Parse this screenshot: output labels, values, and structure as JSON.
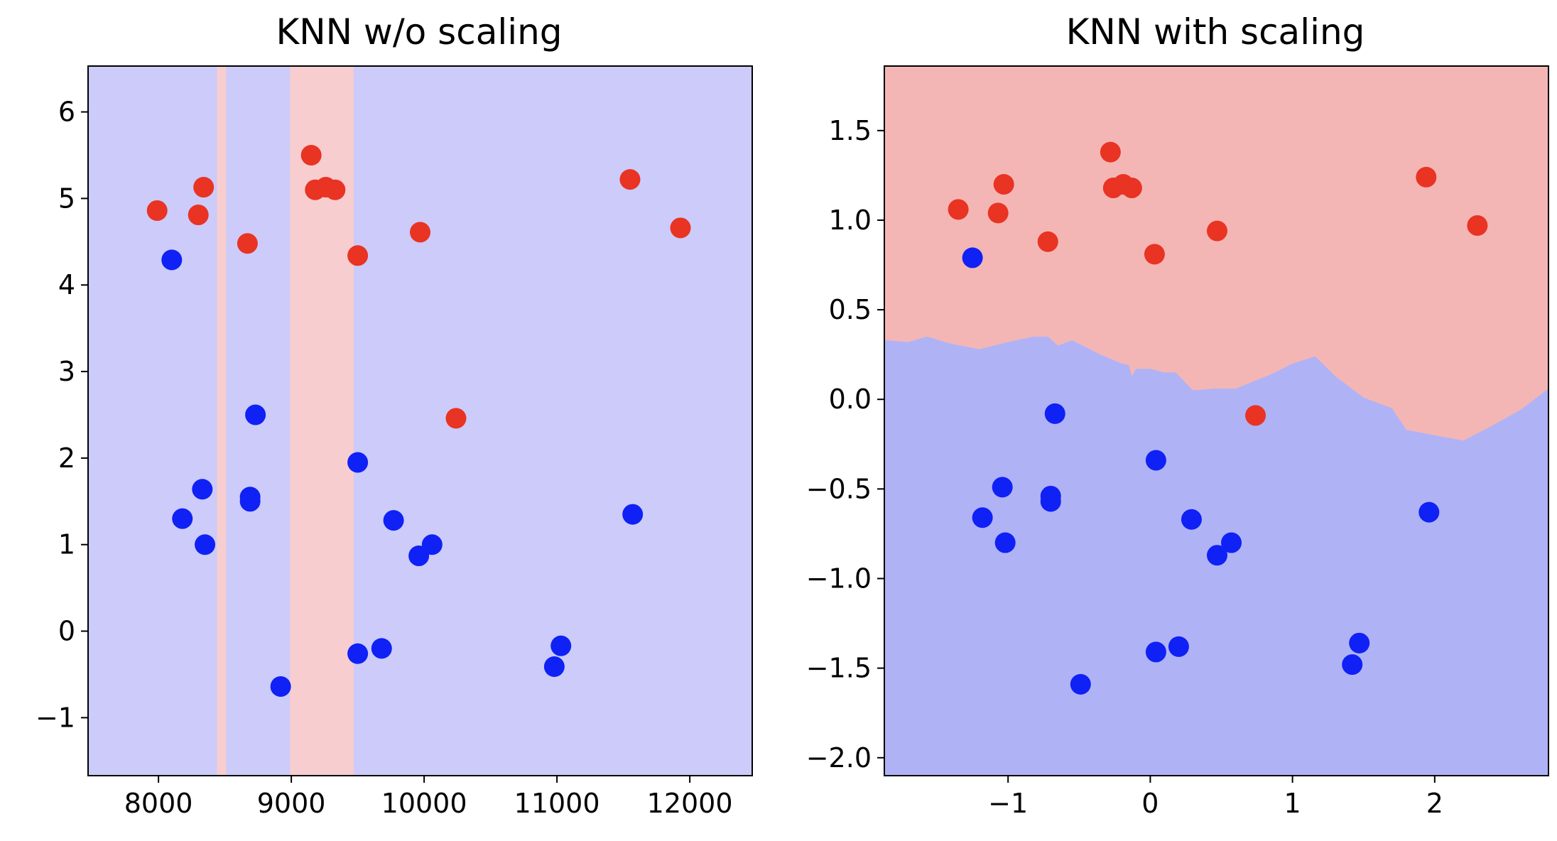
{
  "chart_data": [
    {
      "type": "scatter",
      "title": "KNN w/o scaling",
      "xlim": [
        7470,
        12470
      ],
      "ylim": [
        -1.67,
        6.53
      ],
      "xticks": [
        8000,
        9000,
        10000,
        11000,
        12000
      ],
      "yticks": [
        -1,
        0,
        1,
        2,
        3,
        4,
        5,
        6
      ],
      "xtick_labels": [
        "8000",
        "9000",
        "10000",
        "11000",
        "12000"
      ],
      "ytick_labels": [
        "−1",
        "0",
        "1",
        "2",
        "3",
        "4",
        "5",
        "6"
      ],
      "grid": false,
      "background_color": "#cccbf9",
      "region_color": "#f7cdd0",
      "decision_regions": [
        {
          "class": "red",
          "x_from": 8440,
          "x_to": 8510
        },
        {
          "class": "red",
          "x_from": 8990,
          "x_to": 9470
        }
      ],
      "series": [
        {
          "color": "#e93323",
          "points": [
            [
              7990,
              4.86
            ],
            [
              8300,
              4.81
            ],
            [
              8340,
              5.13
            ],
            [
              8670,
              4.48
            ],
            [
              9150,
              5.5
            ],
            [
              9180,
              5.1
            ],
            [
              9260,
              5.13
            ],
            [
              9330,
              5.1
            ],
            [
              9500,
              4.34
            ],
            [
              9970,
              4.61
            ],
            [
              10240,
              2.46
            ],
            [
              11550,
              5.22
            ],
            [
              11930,
              4.66
            ]
          ]
        },
        {
          "color": "#0f21f5",
          "points": [
            [
              8100,
              4.29
            ],
            [
              8180,
              1.3
            ],
            [
              8330,
              1.64
            ],
            [
              8350,
              1.0
            ],
            [
              8690,
              1.55
            ],
            [
              8690,
              1.5
            ],
            [
              8730,
              2.5
            ],
            [
              8920,
              -0.64
            ],
            [
              9500,
              1.95
            ],
            [
              9500,
              -0.26
            ],
            [
              9680,
              -0.2
            ],
            [
              9770,
              1.28
            ],
            [
              9960,
              0.87
            ],
            [
              10060,
              1.0
            ],
            [
              10980,
              -0.41
            ],
            [
              11030,
              -0.17
            ],
            [
              11570,
              1.35
            ]
          ]
        }
      ]
    },
    {
      "type": "scatter",
      "title": "KNN with scaling",
      "xlim": [
        -1.87,
        2.8
      ],
      "ylim": [
        -2.1,
        1.86
      ],
      "xticks": [
        -1,
        0,
        1,
        2
      ],
      "yticks": [
        -2.0,
        -1.5,
        -1.0,
        -0.5,
        0.0,
        0.5,
        1.0,
        1.5
      ],
      "xtick_labels": [
        "−1",
        "0",
        "1",
        "2"
      ],
      "ytick_labels": [
        "−2.0",
        "−1.5",
        "−1.0",
        "−0.5",
        "0.0",
        "0.5",
        "1.0",
        "1.5"
      ],
      "grid": false,
      "upper_region_color": "#f4b6b5",
      "lower_region_color": "#b0b2f6",
      "decision_boundary": [
        [
          -1.87,
          0.33
        ],
        [
          -1.7,
          0.32
        ],
        [
          -1.57,
          0.35
        ],
        [
          -1.4,
          0.31
        ],
        [
          -1.2,
          0.28
        ],
        [
          -1.0,
          0.32
        ],
        [
          -0.82,
          0.35
        ],
        [
          -0.72,
          0.35
        ],
        [
          -0.65,
          0.3
        ],
        [
          -0.55,
          0.33
        ],
        [
          -0.35,
          0.25
        ],
        [
          -0.2,
          0.2
        ],
        [
          -0.15,
          0.19
        ],
        [
          -0.13,
          0.13
        ],
        [
          -0.1,
          0.17
        ],
        [
          0.0,
          0.17
        ],
        [
          0.1,
          0.15
        ],
        [
          0.18,
          0.15
        ],
        [
          0.3,
          0.05
        ],
        [
          0.45,
          0.06
        ],
        [
          0.6,
          0.06
        ],
        [
          0.85,
          0.14
        ],
        [
          1.0,
          0.2
        ],
        [
          1.16,
          0.24
        ],
        [
          1.3,
          0.13
        ],
        [
          1.5,
          0.01
        ],
        [
          1.7,
          -0.05
        ],
        [
          1.8,
          -0.17
        ],
        [
          2.0,
          -0.2
        ],
        [
          2.2,
          -0.23
        ],
        [
          2.35,
          -0.17
        ],
        [
          2.6,
          -0.06
        ],
        [
          2.8,
          0.06
        ]
      ],
      "series": [
        {
          "color": "#e93323",
          "points": [
            [
              -1.35,
              1.06
            ],
            [
              -1.07,
              1.04
            ],
            [
              -1.03,
              1.2
            ],
            [
              -0.72,
              0.88
            ],
            [
              -0.28,
              1.38
            ],
            [
              -0.26,
              1.18
            ],
            [
              -0.19,
              1.2
            ],
            [
              -0.13,
              1.18
            ],
            [
              0.03,
              0.81
            ],
            [
              0.47,
              0.94
            ],
            [
              0.74,
              -0.09
            ],
            [
              1.94,
              1.24
            ],
            [
              2.3,
              0.97
            ]
          ]
        },
        {
          "color": "#0f21f5",
          "points": [
            [
              -1.25,
              0.79
            ],
            [
              -1.18,
              -0.66
            ],
            [
              -1.04,
              -0.49
            ],
            [
              -1.02,
              -0.8
            ],
            [
              -0.7,
              -0.54
            ],
            [
              -0.7,
              -0.57
            ],
            [
              -0.67,
              -0.08
            ],
            [
              -0.49,
              -1.59
            ],
            [
              0.04,
              -0.34
            ],
            [
              0.04,
              -1.41
            ],
            [
              0.2,
              -1.38
            ],
            [
              0.29,
              -0.67
            ],
            [
              0.47,
              -0.87
            ],
            [
              0.57,
              -0.8
            ],
            [
              1.42,
              -1.48
            ],
            [
              1.47,
              -1.36
            ],
            [
              1.96,
              -0.63
            ]
          ]
        }
      ]
    }
  ]
}
